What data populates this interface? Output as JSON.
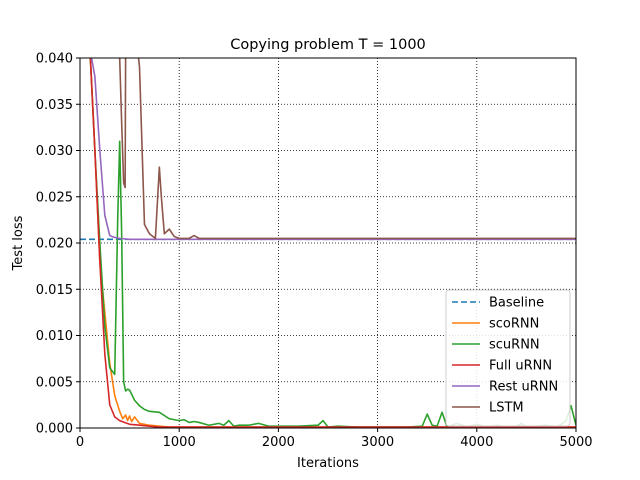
{
  "chart_data": {
    "type": "line",
    "title": "Copying problem T = 1000",
    "xlabel": "Iterations",
    "ylabel": "Test loss",
    "xlim": [
      0,
      5000
    ],
    "ylim": [
      0,
      0.04
    ],
    "xticks": [
      0,
      1000,
      2000,
      3000,
      4000,
      5000
    ],
    "yticks": [
      0.0,
      0.005,
      0.01,
      0.015,
      0.02,
      0.025,
      0.03,
      0.035,
      0.04
    ],
    "xtick_labels": [
      "0",
      "1000",
      "2000",
      "3000",
      "4000",
      "5000"
    ],
    "ytick_labels": [
      "0.000",
      "0.005",
      "0.010",
      "0.015",
      "0.020",
      "0.025",
      "0.030",
      "0.035",
      "0.040"
    ],
    "grid": true,
    "grid_style": "dotted",
    "legend_position": "bottom-right",
    "series": [
      {
        "name": "Baseline",
        "color": "#1f77b4",
        "dashed": true,
        "x": [
          0,
          5000
        ],
        "y": [
          0.0204,
          0.0204
        ]
      },
      {
        "name": "scoRNN",
        "color": "#ff7f0e",
        "dashed": false,
        "x": [
          100,
          150,
          200,
          250,
          300,
          350,
          400,
          430,
          460,
          480,
          500,
          520,
          550,
          600,
          650,
          700,
          800,
          900,
          1000,
          1200,
          1500,
          2000,
          3000,
          4000,
          5000
        ],
        "y": [
          0.041,
          0.03,
          0.018,
          0.0125,
          0.007,
          0.0035,
          0.0018,
          0.001,
          0.0014,
          0.0008,
          0.0013,
          0.0007,
          0.0012,
          0.0005,
          0.0004,
          0.0003,
          0.0002,
          0.0001,
          0.0001,
          0.0001,
          0.0001,
          0.0001,
          0.0001,
          0.0001,
          0.0001
        ]
      },
      {
        "name": "scuRNN",
        "color": "#2ca02c",
        "dashed": false,
        "x": [
          100,
          150,
          200,
          250,
          300,
          350,
          380,
          400,
          420,
          440,
          460,
          480,
          500,
          550,
          600,
          650,
          700,
          800,
          900,
          1000,
          1050,
          1100,
          1150,
          1200,
          1300,
          1400,
          1450,
          1500,
          1550,
          1600,
          1700,
          1800,
          1900,
          2000,
          2200,
          2400,
          2450,
          2500,
          2600,
          2800,
          3000,
          3300,
          3450,
          3500,
          3550,
          3600,
          3650,
          3700,
          3800,
          3900,
          4000,
          4100,
          4200,
          4300,
          4400,
          4450,
          4500,
          4600,
          4700,
          4750,
          4800,
          4850,
          4900,
          4950,
          5000
        ],
        "y": [
          0.041,
          0.03,
          0.02,
          0.011,
          0.0065,
          0.0058,
          0.0225,
          0.031,
          0.021,
          0.005,
          0.004,
          0.0042,
          0.0041,
          0.003,
          0.0024,
          0.002,
          0.0018,
          0.0017,
          0.001,
          0.0008,
          0.0009,
          0.0006,
          0.0007,
          0.0006,
          0.0003,
          0.0005,
          0.0003,
          0.0008,
          0.0002,
          0.0003,
          0.0003,
          0.0005,
          0.0002,
          0.0002,
          0.0002,
          0.0003,
          0.0008,
          0.0001,
          0.0002,
          0.0001,
          0.0001,
          0.0001,
          0.0002,
          0.0015,
          0.0003,
          0.0002,
          0.0017,
          0.0001,
          0.0005,
          0.0001,
          0.0004,
          0.0001,
          0.0003,
          0.0001,
          0.0002,
          0.0005,
          0.0001,
          0.0002,
          0.0003,
          0.0002,
          0.0001,
          0.0004,
          0.0008,
          0.0024,
          0.0003
        ]
      },
      {
        "name": "Full uRNN",
        "color": "#d62728",
        "dashed": false,
        "x": [
          100,
          150,
          200,
          250,
          300,
          350,
          400,
          450,
          500,
          600,
          700,
          800,
          1000,
          1500,
          2000,
          3000,
          4000,
          5000
        ],
        "y": [
          0.041,
          0.03,
          0.018,
          0.008,
          0.0025,
          0.0012,
          0.0008,
          0.0006,
          0.0004,
          0.0003,
          0.0002,
          0.0001,
          0.0001,
          0.0001,
          0.0001,
          0.0001,
          0.0001,
          0.0001
        ]
      },
      {
        "name": "Rest uRNN",
        "color": "#9467bd",
        "dashed": false,
        "x": [
          100,
          150,
          200,
          250,
          300,
          350,
          400,
          500,
          600,
          800,
          1000,
          1500,
          2000,
          3000,
          4000,
          5000
        ],
        "y": [
          0.041,
          0.038,
          0.03,
          0.023,
          0.0208,
          0.0206,
          0.0205,
          0.0204,
          0.0204,
          0.0204,
          0.0204,
          0.0204,
          0.0204,
          0.0204,
          0.0204,
          0.0204
        ]
      },
      {
        "name": "LSTM",
        "color": "#8c564b",
        "dashed": false,
        "x": [
          395,
          400,
          420,
          440,
          455,
          460,
          580,
          600,
          650,
          700,
          760,
          800,
          820,
          850,
          900,
          950,
          1000,
          1100,
          1150,
          1200,
          1300,
          1500,
          2000,
          3000,
          4000,
          5000
        ],
        "y": [
          0.041,
          0.04,
          0.033,
          0.0265,
          0.026,
          0.041,
          0.041,
          0.039,
          0.022,
          0.021,
          0.0205,
          0.0282,
          0.025,
          0.021,
          0.0215,
          0.0207,
          0.0205,
          0.0205,
          0.0208,
          0.0205,
          0.0205,
          0.0205,
          0.0205,
          0.0205,
          0.0205,
          0.0205
        ]
      }
    ]
  }
}
